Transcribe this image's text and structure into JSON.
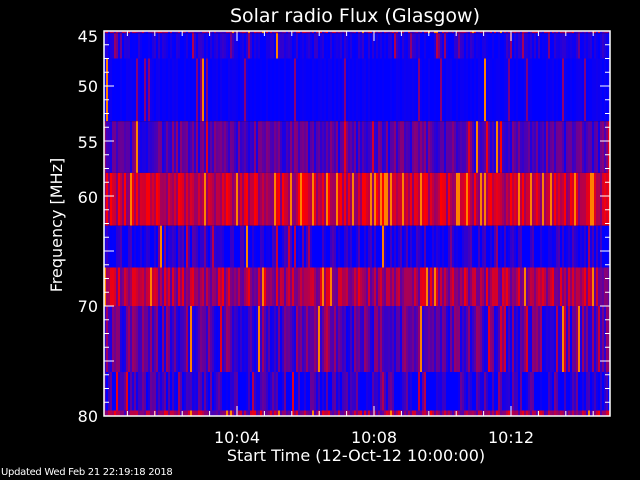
{
  "chart_data": {
    "type": "heatmap",
    "title": "Solar radio Flux (Glasgow)",
    "xlabel": "Start Time (12-Oct-12 10:00:00)",
    "ylabel": "Frequency [MHz]",
    "xlim": [
      "10:00:00",
      "10:14:53"
    ],
    "ylim": [
      45,
      80
    ],
    "y_inverted": true,
    "x_ticks": [
      "10:04",
      "10:08",
      "10:12"
    ],
    "y_ticks": [
      "45",
      "50",
      "55",
      "60",
      "70",
      "80"
    ],
    "colormap": {
      "low": "#0000ff",
      "mid": "#800080",
      "high": "#ff0000",
      "peak": "#ff8000"
    },
    "bands": [
      {
        "freq": [
          45.0,
          45.2
        ],
        "mean_level": 0.45,
        "variability": 0.4
      },
      {
        "freq": [
          45.2,
          47.5
        ],
        "mean_level": 0.08,
        "variability": 0.15
      },
      {
        "freq": [
          47.5,
          53.2
        ],
        "mean_level": 0.02,
        "variability": 0.05
      },
      {
        "freq": [
          53.2,
          57.9
        ],
        "mean_level": 0.3,
        "variability": 0.25
      },
      {
        "freq": [
          57.9,
          62.7
        ],
        "mean_level": 0.8,
        "variability": 0.3
      },
      {
        "freq": [
          62.7,
          66.5
        ],
        "mean_level": 0.08,
        "variability": 0.25
      },
      {
        "freq": [
          66.5,
          70.0
        ],
        "mean_level": 0.65,
        "variability": 0.3
      },
      {
        "freq": [
          70.0,
          76.0
        ],
        "mean_level": 0.32,
        "variability": 0.3
      },
      {
        "freq": [
          76.0,
          79.5
        ],
        "mean_level": 0.15,
        "variability": 0.3
      },
      {
        "freq": [
          79.5,
          80.0
        ],
        "mean_level": 0.6,
        "variability": 0.35
      }
    ]
  },
  "footer": {
    "updated": "Updated Wed Feb 21 22:19:18 2018"
  }
}
